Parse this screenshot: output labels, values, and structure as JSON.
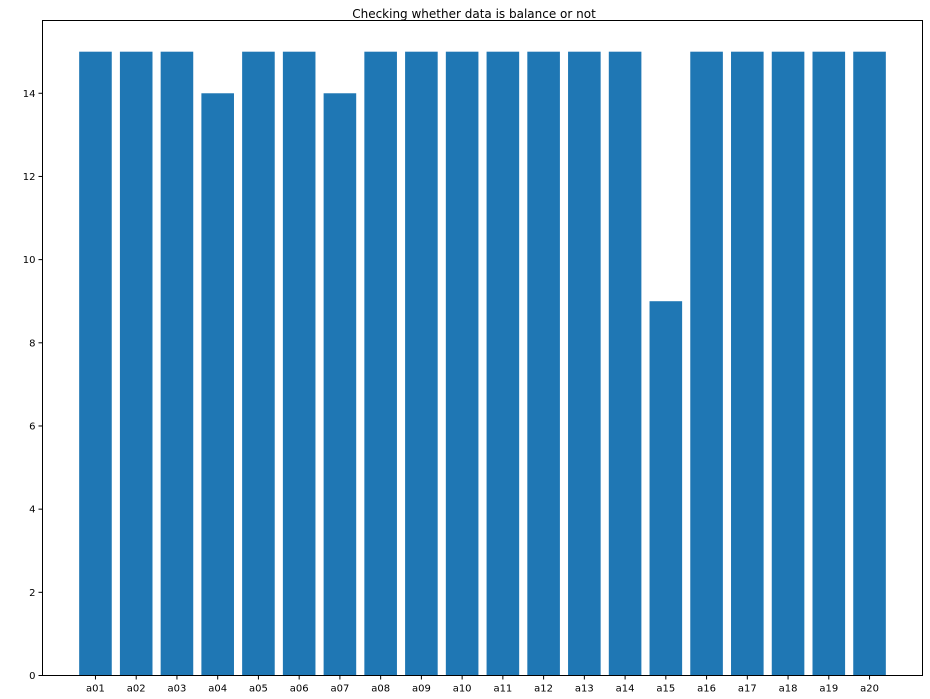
{
  "chart_data": {
    "type": "bar",
    "title": "Checking whether data is balance or not",
    "xlabel": "",
    "ylabel": "",
    "categories": [
      "a01",
      "a02",
      "a03",
      "a04",
      "a05",
      "a06",
      "a07",
      "a08",
      "a09",
      "a10",
      "a11",
      "a12",
      "a13",
      "a14",
      "a15",
      "a16",
      "a17",
      "a18",
      "a19",
      "a20"
    ],
    "values": [
      15,
      15,
      15,
      14,
      15,
      15,
      14,
      15,
      15,
      15,
      15,
      15,
      15,
      15,
      9,
      15,
      15,
      15,
      15,
      15
    ],
    "ylim": [
      0,
      15.75
    ],
    "yticks": [
      0,
      2,
      4,
      6,
      8,
      10,
      12,
      14
    ],
    "grid": false,
    "legend": "none",
    "colors": {
      "bar": "#1f77b4",
      "axis": "#000000",
      "background": "#ffffff"
    }
  }
}
